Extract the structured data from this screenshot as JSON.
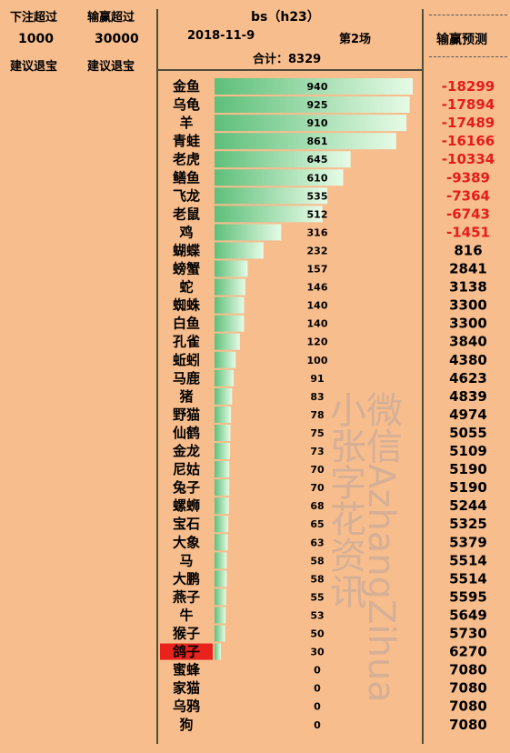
{
  "left_panel": {
    "bet_header": "下注超过",
    "bet_value": "1000",
    "bet_note": "建议退宝",
    "win_header": "输赢超过",
    "win_value": "30000",
    "win_note": "建议退宝"
  },
  "header": {
    "title": "bs（h23）",
    "date": "2018-11-9",
    "round": "第2场",
    "total": "合计：8329"
  },
  "right_panel": {
    "title": "输赢预测"
  },
  "watermark": {
    "line1": "微信AzhangZihua",
    "line2": "小张字花资讯"
  },
  "colors": {
    "background": "#f7bd8d",
    "bar_light": "#e6fbe6",
    "bar_dark": "#5ebf7a",
    "negative": "#e61c1c",
    "highlight": "#e8221c"
  },
  "chart_data": {
    "type": "bar",
    "orientation": "horizontal",
    "title": "",
    "xlabel": "",
    "ylabel": "",
    "xlim": [
      0,
      1000
    ],
    "grid": false,
    "highlighted_category": "鸽子",
    "categories": [
      "金鱼",
      "乌龟",
      "羊",
      "青蛙",
      "老虎",
      "鳝鱼",
      "飞龙",
      "老鼠",
      "鸡",
      "蝴蝶",
      "螃蟹",
      "蛇",
      "蜘蛛",
      "白鱼",
      "孔雀",
      "蚯蚓",
      "马鹿",
      "猪",
      "野猫",
      "仙鹤",
      "金龙",
      "尼姑",
      "兔子",
      "螺蛳",
      "宝石",
      "大象",
      "马",
      "大鹏",
      "燕子",
      "牛",
      "猴子",
      "鸽子",
      "蜜蜂",
      "家猫",
      "乌鸦",
      "狗"
    ],
    "values": [
      940,
      925,
      910,
      861,
      645,
      610,
      535,
      512,
      316,
      232,
      157,
      146,
      140,
      140,
      120,
      100,
      91,
      83,
      78,
      75,
      73,
      70,
      70,
      68,
      65,
      63,
      58,
      58,
      55,
      53,
      50,
      30,
      0,
      0,
      0,
      0
    ],
    "predictions": [
      -18299,
      -17894,
      -17489,
      -16166,
      -10334,
      -9389,
      -7364,
      -6743,
      -1451,
      816,
      2841,
      3138,
      3300,
      3300,
      3840,
      4380,
      4623,
      4839,
      4974,
      5055,
      5109,
      5190,
      5190,
      5244,
      5325,
      5379,
      5514,
      5514,
      5595,
      5649,
      5730,
      6270,
      7080,
      7080,
      7080,
      7080
    ]
  }
}
